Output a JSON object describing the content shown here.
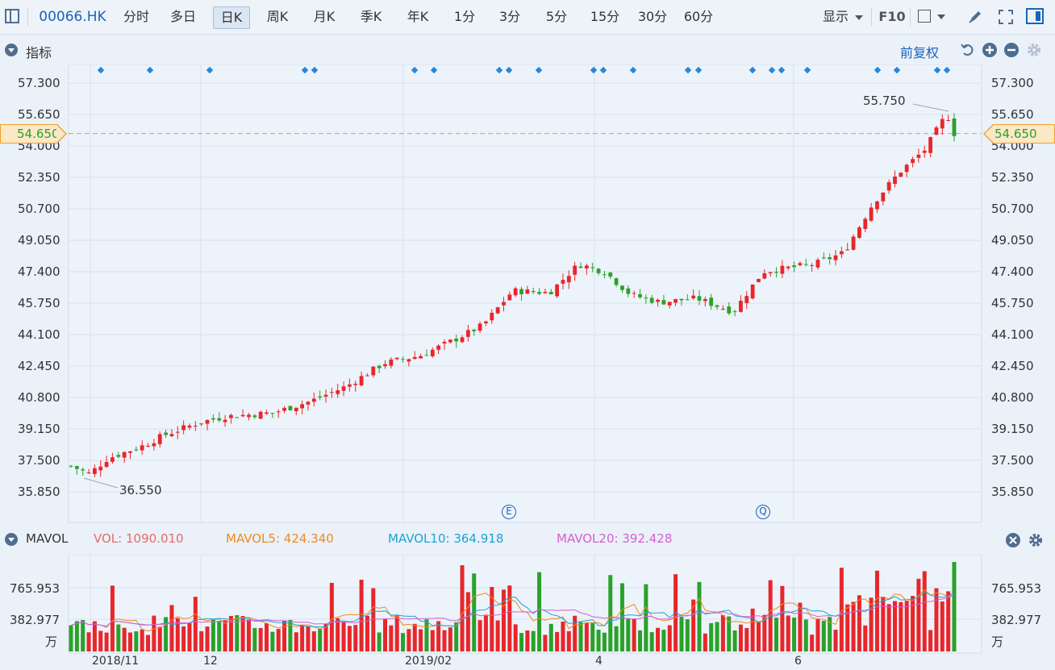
{
  "toolbar": {
    "symbol": "00066.HK",
    "periods": [
      "分时",
      "多日",
      "日K",
      "周K",
      "月K",
      "季K",
      "年K",
      "1分",
      "3分",
      "5分",
      "15分",
      "30分",
      "60分"
    ],
    "active_period": "日K",
    "display_label": "显示",
    "f10_label": "F10"
  },
  "indicator": {
    "title": "指标",
    "adjust_label": "前复权"
  },
  "price_axis": {
    "ticks": [
      "57.300",
      "55.650",
      "54.000",
      "52.350",
      "50.700",
      "49.050",
      "47.400",
      "45.750",
      "44.100",
      "42.450",
      "40.800",
      "39.150",
      "37.500",
      "35.850"
    ],
    "current_price": "54.650",
    "high_label": "55.750",
    "low_label": "36.550",
    "event_e": "E",
    "event_q": "Q"
  },
  "volume": {
    "title": "MAVOL",
    "vol_label": "VOL:",
    "vol_value": "1090.010",
    "mavol5_label": "MAVOL5:",
    "mavol5_value": "424.340",
    "mavol10_label": "MAVOL10:",
    "mavol10_value": "364.918",
    "mavol20_label": "MAVOL20:",
    "mavol20_value": "392.428",
    "ticks": [
      "765.953",
      "382.977"
    ],
    "unit": "万"
  },
  "time_axis": {
    "labels": [
      "2018/11",
      "12",
      "2019/02",
      "4",
      "6"
    ]
  },
  "colors": {
    "up": "#e8262b",
    "down": "#2aa12a",
    "accent": "#1b63b8",
    "current_line": "#f0a030",
    "vol_color": "#e86a6a",
    "mavol5_color": "#f08a1c",
    "mavol10_color": "#1aa4d6",
    "mavol20_color": "#d85fd0"
  }
}
